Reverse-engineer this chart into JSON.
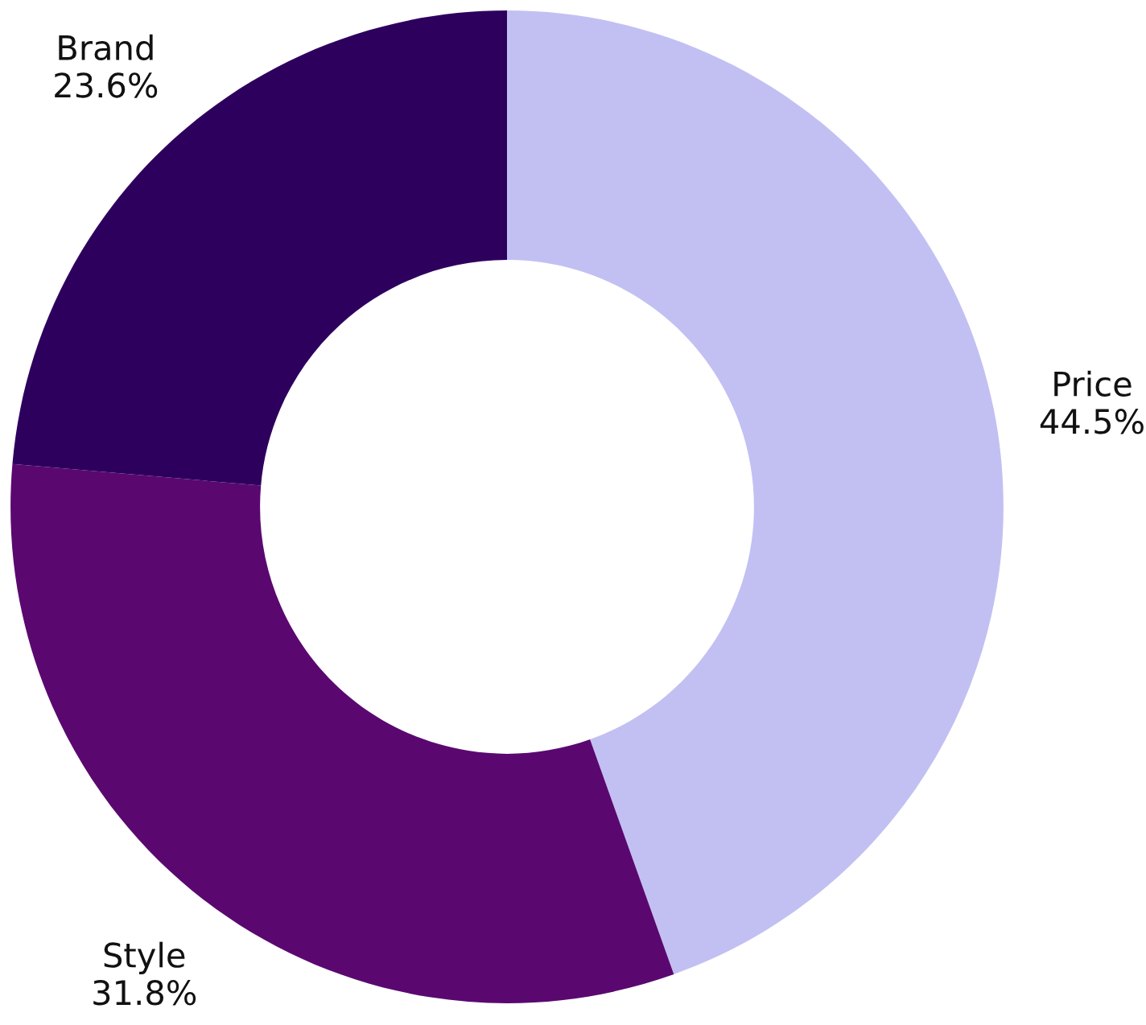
{
  "chart_data": {
    "type": "donut",
    "categories": [
      "Price",
      "Style",
      "Brand"
    ],
    "values": [
      44.5,
      31.8,
      23.6
    ],
    "colors": [
      "#c2c0f2",
      "#5a0870",
      "#2e005e"
    ],
    "value_labels": [
      "44.5%",
      "31.8%",
      "23.6%"
    ]
  }
}
